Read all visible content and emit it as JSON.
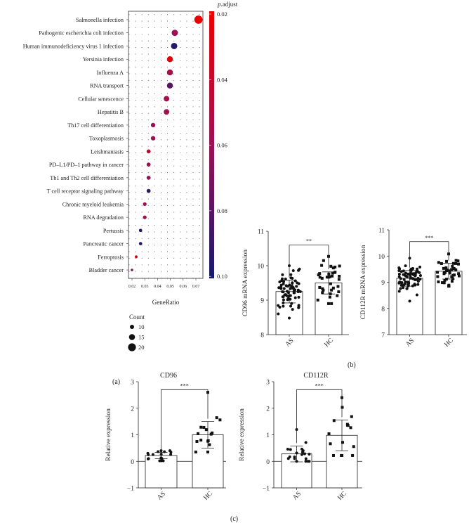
{
  "panel_labels": {
    "a": "(a)",
    "b": "(b)",
    "c": "(c)"
  },
  "chart_data": [
    {
      "type": "scatter",
      "id": "a",
      "subtype": "dotplot",
      "xlabel": "GeneRatio",
      "x_ticks": [
        "0.02",
        "0.03",
        "0.04",
        "0.05",
        "0.06",
        "0.07"
      ],
      "xlim": [
        0.02,
        0.07
      ],
      "colorbar": {
        "title_italic": "p",
        "title_rest": ".adjust",
        "ticks": [
          "0.02",
          "0.04",
          "0.06",
          "0.08",
          "0.10"
        ],
        "range": [
          0.02,
          0.1
        ],
        "low_color": "#ee0000",
        "mid_color": "#9b1155",
        "high_color": "#131a6b"
      },
      "size_legend": {
        "title": "Count",
        "items": [
          "10",
          "15",
          "20"
        ]
      },
      "categories": [
        "Salmonella infection",
        "Pathogenic escherichia coli infection",
        "Human immunodeficiency virus 1 infection",
        "Yersinia infection",
        "Influenza A",
        "RNA transport",
        "Cellular senescence",
        "Hepatitis B",
        "Th17 cell differentiation",
        "Toxoplasmosis",
        "Leishmaniasis",
        "PD–L1/PD–1 pathway in cancer",
        "Th1 and Th2 cell differentiation",
        "T cell receptor signaling pathway",
        "Chronic myeloid leukemia",
        "RNA degradation",
        "Pertussis",
        "Pancreatic cancer",
        "Ferroptosis",
        "Bladder cancer"
      ],
      "gene_ratio": [
        0.072,
        0.0535,
        0.053,
        0.0497,
        0.0497,
        0.0497,
        0.047,
        0.047,
        0.0365,
        0.0365,
        0.033,
        0.033,
        0.033,
        0.033,
        0.03,
        0.03,
        0.0267,
        0.0267,
        0.0233,
        0.02
      ],
      "p_adjust": [
        0.02,
        0.06,
        0.095,
        0.025,
        0.055,
        0.08,
        0.057,
        0.057,
        0.06,
        0.06,
        0.042,
        0.06,
        0.06,
        0.09,
        0.057,
        0.057,
        0.095,
        0.095,
        0.035,
        0.07
      ],
      "count": [
        20,
        15,
        15,
        14,
        14,
        14,
        13,
        13,
        10,
        10,
        9,
        9,
        9,
        9,
        8,
        8,
        7,
        7,
        6,
        5
      ]
    },
    {
      "type": "bar",
      "id": "b1",
      "title": "",
      "ylabel": "CD96 mRNA expression",
      "categories": [
        "AS",
        "HC"
      ],
      "ylim": [
        8,
        11
      ],
      "y_ticks": [
        "8",
        "9",
        "10",
        "11"
      ],
      "means": [
        9.25,
        9.5
      ],
      "sd": [
        0.33,
        0.32
      ],
      "n": [
        70,
        36
      ],
      "point_range": [
        [
          8.48,
          10.0
        ],
        [
          8.9,
          10.27
        ]
      ],
      "markers": [
        "circle",
        "square"
      ],
      "significance": "**",
      "bracket_y": 10.6
    },
    {
      "type": "bar",
      "id": "b2",
      "title": "",
      "ylabel": "CD112R mRNA expression",
      "categories": [
        "AS",
        "HC"
      ],
      "ylim": [
        7,
        11
      ],
      "y_ticks": [
        "7",
        "8",
        "9",
        "10",
        "11"
      ],
      "means": [
        9.15,
        9.42
      ],
      "sd": [
        0.3,
        0.3
      ],
      "n": [
        75,
        40
      ],
      "point_range": [
        [
          8.28,
          9.92
        ],
        [
          8.85,
          10.08
        ]
      ],
      "markers": [
        "circle",
        "square"
      ],
      "significance": "***",
      "bracket_y": 10.55
    },
    {
      "type": "bar",
      "id": "c1",
      "title": "CD96",
      "ylabel": "Relative expression",
      "categories": [
        "AS",
        "HC"
      ],
      "ylim": [
        -1,
        3
      ],
      "y_ticks": [
        "−1",
        "0",
        "1",
        "2",
        "3"
      ],
      "means": [
        0.22,
        1.0
      ],
      "sd": [
        0.12,
        0.5
      ],
      "n": [
        18,
        16
      ],
      "point_range": [
        [
          0.02,
          0.4
        ],
        [
          0.35,
          2.6
        ]
      ],
      "markers": [
        "circle",
        "square"
      ],
      "significance": "***",
      "bracket_y": 2.7
    },
    {
      "type": "bar",
      "id": "c2",
      "title": "CD112R",
      "ylabel": "Relative expression",
      "categories": [
        "AS",
        "HC"
      ],
      "ylim": [
        -1,
        3
      ],
      "y_ticks": [
        "−1",
        "0",
        "1",
        "2",
        "3"
      ],
      "means": [
        0.28,
        0.98
      ],
      "sd": [
        0.3,
        0.58
      ],
      "n": [
        20,
        16
      ],
      "point_range": [
        [
          0.0,
          1.2
        ],
        [
          0.22,
          2.4
        ]
      ],
      "markers": [
        "circle",
        "square"
      ],
      "significance": "***",
      "bracket_y": 2.7
    }
  ]
}
